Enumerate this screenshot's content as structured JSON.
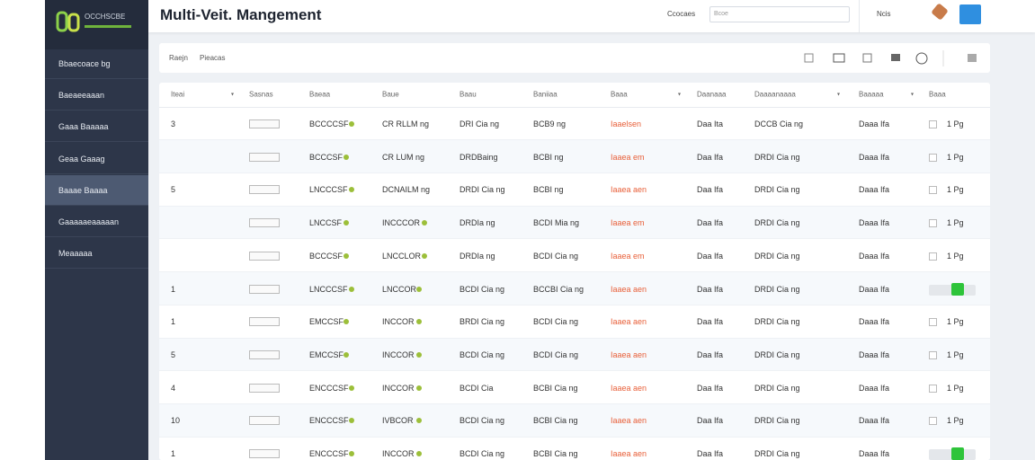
{
  "sidebar": {
    "logo": "OCCHSCBE",
    "menu": [
      "Bbaecoace bg",
      "Baeaeeaaan",
      "Gaaa Baaaaa",
      "Geaa Gaaag",
      "Baaae Baaaa",
      "Gaaaaaeaaaaan",
      "Meaaaaa"
    ],
    "active": 4
  },
  "header": {
    "title": "Multi-Veit. Mangement",
    "search_label": "Ccocaes",
    "search_placeholder": "Bcoe",
    "notice": "Ncis"
  },
  "toolbar": {
    "label": "Raejn",
    "filter": "Pieacas"
  },
  "table": {
    "columns": [
      "Iteai",
      "Sasnas",
      "Baeaa",
      "Baue",
      "Baau",
      "Baniiaa",
      "Baaa",
      "Daanaaa",
      "Daaaanaaaa",
      "Baaaaa",
      "Baaa"
    ],
    "rows": [
      {
        "cells": [
          "3",
          "BCCCCSF",
          "CR RLLM ng",
          "DRI Cia ng",
          "BCB9 ng",
          "Iaaelsen",
          "Daa Ita",
          "DCCB Cia ng",
          "Daaa Ifa",
          "1 Pg"
        ]
      },
      {
        "cells": [
          null,
          "BCCCSF",
          "CR LUM ng",
          "DRDBaing",
          "BCBI ng",
          "Iaaea em",
          "Daa Ifa",
          "DRDI Cia ng",
          "Daaa Ifa",
          "1 Pg"
        ]
      },
      {
        "cells": [
          "5",
          "LNCCCSF",
          "DCNAILM ng",
          "DRDI Cia ng",
          "BCBI ng",
          "Iaaea aen",
          "Daa Ifa",
          "DRDI Cia ng",
          "Daaa Ifa",
          "1 Pg"
        ]
      },
      {
        "cells": [
          null,
          "LNCCSF",
          "INCCCOR",
          "DRDIa ng",
          "BCDI Mia ng",
          "Iaaea em",
          "Daa Ifa",
          "DRDI Cia ng",
          "Daaa Ifa",
          "1 Pg"
        ]
      },
      {
        "cells": [
          null,
          "BCCCSF",
          "LNCCLOR",
          "DRDIa ng",
          "BCDI Cia ng",
          "Iaaea em",
          "Daa Ifa",
          "DRDI Cia ng",
          "Daaa Ifa",
          "1 Pg"
        ]
      },
      {
        "cells": [
          "1",
          "LNCCCSF",
          "LNCCOR",
          "BCDI Cia ng",
          "BCCBI Cia ng",
          "Iaaea aen",
          "Daa Ifa",
          "DRDI Cia ng",
          "Daaa Ifa",
          null
        ],
        "toggle": true
      },
      {
        "cells": [
          "1",
          "EMCCSF",
          "INCCOR",
          "BRDI Cia ng",
          "BCDI Cia ng",
          "Iaaea aen",
          "Daa Ifa",
          "DRDI Cia ng",
          "Daaa Ifa",
          "1 Pg"
        ]
      },
      {
        "cells": [
          "5",
          "EMCCSF",
          "INCCOR",
          "BCDI Cia ng",
          "BCDI Cia ng",
          "Iaaea aen",
          "Daa Ifa",
          "DRDI Cia ng",
          "Daaa Ifa",
          "1 Pg"
        ]
      },
      {
        "cells": [
          "4",
          "ENCCCSF",
          "INCCOR",
          "BCDI Cia",
          "BCBI Cia ng",
          "Iaaea aen",
          "Daa Ifa",
          "DRDI Cia ng",
          "Daaa Ifa",
          "1 Pg"
        ]
      },
      {
        "cells": [
          "10",
          "ENCCCSF",
          "IVBCOR",
          "BCDI Cia ng",
          "BCBI Cia ng",
          "Iaaea aen",
          "Daa Ifa",
          "DRDI Cia ng",
          "Daaa Ifa",
          "1 Pg"
        ]
      },
      {
        "cells": [
          "1",
          "ENCCCSF",
          "INCCOR",
          "BCDI Cia ng",
          "BCBI Cia ng",
          "Iaaea aen",
          "Daa Ifa",
          "DRDI Cia ng",
          "Daaa Ifa",
          null
        ],
        "toggle": true
      }
    ]
  }
}
